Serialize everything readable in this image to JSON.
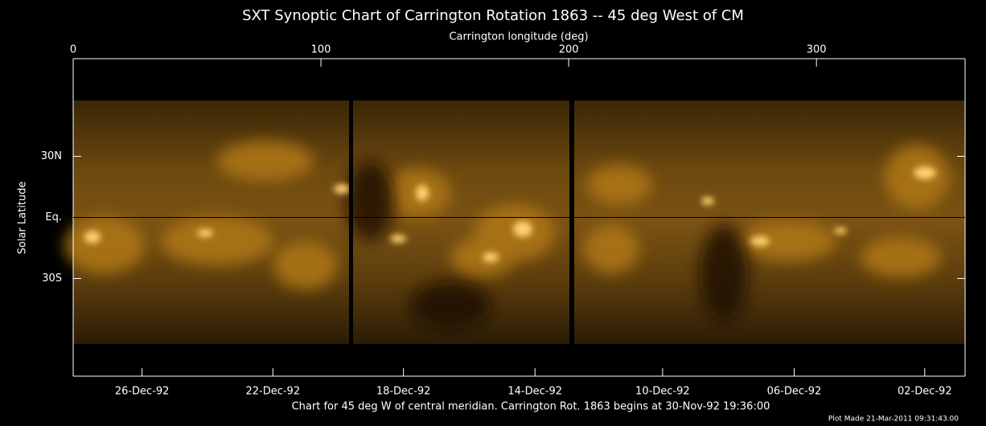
{
  "chart_data": {
    "type": "image-map",
    "title": "SXT Synoptic Chart of Carrington Rotation 1863 -- 45 deg West of CM",
    "x_label": "Carrington longitude (deg)",
    "y_label": "Solar Latitude",
    "caption": "Chart for 45 deg W of central meridian.  Carrington Rot. 1863 begins at 30-Nov-92 19:36:00",
    "footer": "Plot Made 21-Mar-2011 09:31:43.00",
    "xlim": [
      0,
      360
    ],
    "xticks": [
      0,
      100,
      200,
      300
    ],
    "x2ticks": [
      {
        "value": 27.8,
        "label": "26-Dec-92"
      },
      {
        "value": 80.6,
        "label": "22-Dec-92"
      },
      {
        "value": 133.3,
        "label": "18-Dec-92"
      },
      {
        "value": 186.4,
        "label": "14-Dec-92"
      },
      {
        "value": 237.9,
        "label": "10-Dec-92"
      },
      {
        "value": 291,
        "label": "06-Dec-92"
      },
      {
        "value": 343.7,
        "label": "02-Dec-92"
      }
    ],
    "ylim": [
      -78,
      78
    ],
    "yticks": [
      {
        "value": 30,
        "label": "30N"
      },
      {
        "value": 0,
        "label": "Eq."
      },
      {
        "value": -30,
        "label": "30S"
      }
    ],
    "equator_line": true
  }
}
